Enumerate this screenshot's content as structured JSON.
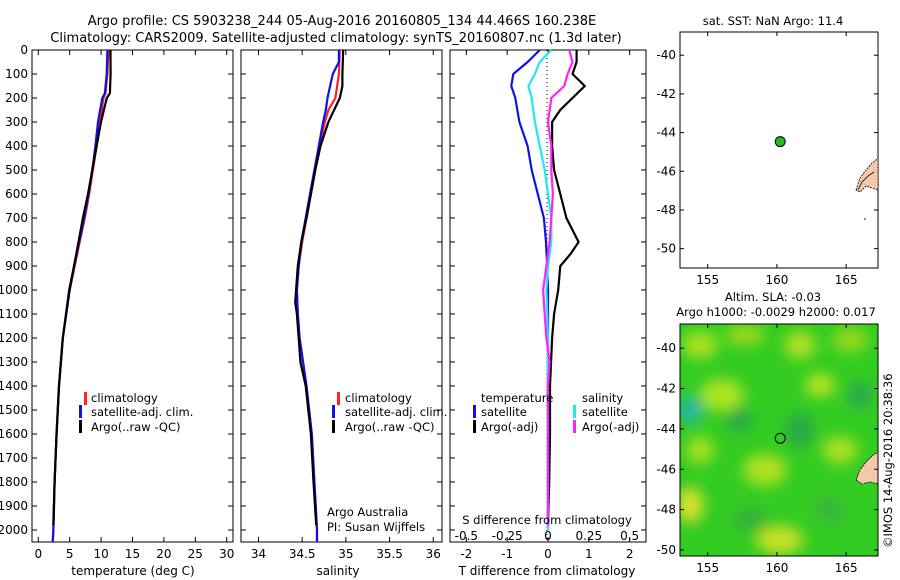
{
  "header": {
    "line1": "Argo profile: CS 5903238_244 05-Aug-2016 20160805_134 44.466S 160.238E",
    "line2": "Climatology: CARS2009. Satellite-adjusted climatology: synTS_20160807.nc (1.3d later)"
  },
  "colors": {
    "climatology": "#ff2020",
    "satellite": "#1010ee",
    "argo": "#000000",
    "sal_satellite": "#20e8f0",
    "sal_argo": "#ff20ff",
    "marker": "#22bb22",
    "sla_field": "#33cc22"
  },
  "legends": {
    "temp": [
      "climatology",
      "satellite-adj. clim.",
      "Argo(..raw -QC)"
    ],
    "sal": [
      "climatology",
      "satellite-adj. clim.",
      "Argo(..raw -QC)"
    ],
    "diff_temp_head": "temperature",
    "diff_sal_head": "salinity",
    "diff_temp": [
      "satellite",
      "Argo(-adj)"
    ],
    "diff_sal": [
      "satellite",
      "Argo(-adj)"
    ]
  },
  "annotations": {
    "institution": "Argo Australia",
    "pi": "PI: Susan Wijffels",
    "s_axis_title": "S difference from climatology",
    "sst_title": "sat. SST: NaN Argo: 11.4",
    "sla_title1": "Altim. SLA: -0.03",
    "sla_title2": "Argo h1000: -0.0029 h2000: 0.017",
    "credit": "©IMOS 14-Aug-2016 20:38:36"
  },
  "chart_data": [
    {
      "type": "line",
      "panel": "temperature",
      "xlabel": "temperature (deg C)",
      "xlim": [
        -1,
        31
      ],
      "xticks": [
        0,
        5,
        10,
        15,
        20,
        25,
        30
      ],
      "ylim": [
        2050,
        0
      ],
      "yticks": [
        0,
        100,
        200,
        300,
        400,
        500,
        600,
        700,
        800,
        900,
        1000,
        1100,
        1200,
        1300,
        1400,
        1500,
        1600,
        1700,
        1800,
        1900,
        2000
      ],
      "series": [
        {
          "name": "climatology",
          "color_key": "climatology",
          "depth": [
            0,
            100,
            180,
            200,
            300,
            400,
            500,
            600,
            700,
            800,
            900,
            1000,
            1200,
            1400,
            1600,
            1800,
            2000,
            2050
          ],
          "values": [
            11.2,
            11.0,
            10.7,
            10.4,
            9.8,
            9.3,
            8.7,
            8.1,
            7.4,
            6.6,
            5.8,
            5.0,
            3.9,
            3.3,
            2.9,
            2.6,
            2.4,
            2.3
          ]
        },
        {
          "name": "satellite-adj. clim.",
          "color_key": "satellite",
          "depth": [
            0,
            100,
            180,
            200,
            300,
            400,
            500,
            600,
            700,
            800,
            900,
            1000,
            1200,
            1400,
            1600,
            1800,
            2000,
            2050
          ],
          "values": [
            11.0,
            10.9,
            10.6,
            10.2,
            9.5,
            9.1,
            8.6,
            8.0,
            7.3,
            6.5,
            5.7,
            4.9,
            3.9,
            3.3,
            2.9,
            2.6,
            2.4,
            2.3
          ]
        },
        {
          "name": "Argo(..raw -QC)",
          "color_key": "argo",
          "depth": [
            0,
            100,
            180,
            200,
            300,
            400,
            500,
            600,
            700,
            800,
            900,
            1000,
            1200,
            1400,
            1600,
            1800,
            1980
          ],
          "values": [
            11.5,
            11.5,
            11.4,
            10.9,
            10.0,
            9.3,
            8.6,
            7.9,
            7.1,
            6.4,
            5.7,
            5.0,
            3.9,
            3.3,
            2.9,
            2.6,
            2.4
          ]
        }
      ]
    },
    {
      "type": "line",
      "panel": "salinity",
      "xlabel": "salinity",
      "xlim": [
        33.8,
        36.1
      ],
      "xticks": [
        34,
        34.5,
        35,
        35.5,
        36
      ],
      "ylim": [
        2050,
        0
      ],
      "series": [
        {
          "name": "climatology",
          "color_key": "climatology",
          "depth": [
            0,
            100,
            200,
            250,
            300,
            400,
            500,
            600,
            700,
            800,
            900,
            1000,
            1100,
            1200,
            1400,
            1600,
            1800,
            2000,
            2050
          ],
          "values": [
            34.93,
            34.92,
            34.88,
            34.8,
            34.76,
            34.7,
            34.65,
            34.6,
            34.55,
            34.5,
            34.46,
            34.44,
            34.45,
            34.47,
            34.55,
            34.61,
            34.64,
            34.67,
            34.67
          ]
        },
        {
          "name": "satellite-adj. clim.",
          "color_key": "satellite",
          "depth": [
            0,
            50,
            100,
            150,
            200,
            250,
            300,
            400,
            500,
            600,
            700,
            800,
            900,
            1000,
            1100,
            1200,
            1400,
            1600,
            1800,
            2000,
            2050
          ],
          "values": [
            34.92,
            34.92,
            34.85,
            34.82,
            34.79,
            34.77,
            34.74,
            34.69,
            34.64,
            34.59,
            34.54,
            34.49,
            34.46,
            34.44,
            34.45,
            34.47,
            34.55,
            34.61,
            34.64,
            34.67,
            34.67
          ]
        },
        {
          "name": "Argo(..raw -QC)",
          "color_key": "argo",
          "depth": [
            0,
            100,
            150,
            200,
            300,
            400,
            500,
            600,
            700,
            800,
            900,
            1000,
            1050,
            1100,
            1200,
            1300,
            1400,
            1600,
            1800,
            1980
          ],
          "values": [
            34.97,
            34.96,
            34.96,
            34.93,
            34.8,
            34.71,
            34.65,
            34.6,
            34.55,
            34.49,
            34.45,
            34.43,
            34.42,
            34.44,
            34.46,
            34.48,
            34.54,
            34.6,
            34.63,
            34.66
          ]
        }
      ]
    },
    {
      "type": "line",
      "panel": "differences",
      "xlabel": "T difference from climatology",
      "xlim": [
        -2.4,
        2.4
      ],
      "xticks": [
        -2,
        -1,
        0,
        1,
        2
      ],
      "s_xticks": [
        -0.5,
        -0.25,
        0,
        0.25,
        0.5
      ],
      "ylim": [
        2050,
        0
      ],
      "series": [
        {
          "name": "temperature satellite",
          "color_key": "satellite",
          "depth": [
            0,
            50,
            100,
            150,
            200,
            300,
            400,
            500,
            600,
            700,
            800,
            900,
            1000,
            1200,
            1400,
            1600,
            1800,
            2000
          ],
          "values": [
            -0.2,
            -0.5,
            -0.85,
            -0.9,
            -0.8,
            -0.7,
            -0.5,
            -0.4,
            -0.25,
            -0.1,
            -0.05,
            -0.02,
            0,
            0,
            0,
            0,
            0,
            0
          ]
        },
        {
          "name": "temperature Argo(-adj)",
          "color_key": "argo",
          "depth": [
            0,
            50,
            100,
            150,
            200,
            250,
            300,
            400,
            500,
            600,
            700,
            750,
            800,
            850,
            900,
            1000,
            1100,
            1200,
            1400,
            1600,
            1800,
            1980
          ],
          "values": [
            0.7,
            0.7,
            0.6,
            0.9,
            0.6,
            0.3,
            0.1,
            0.1,
            0.15,
            0.3,
            0.45,
            0.6,
            0.75,
            0.55,
            0.3,
            0.25,
            0.15,
            0.1,
            0.05,
            0.05,
            0.03,
            0
          ]
        },
        {
          "name": "salinity satellite",
          "color_key": "sal_satellite",
          "depth": [
            0,
            50,
            100,
            150,
            200,
            300,
            400,
            500,
            600,
            700,
            800,
            900,
            1000,
            1200,
            1400,
            1600,
            1800,
            2000
          ],
          "values": [
            0.02,
            -0.05,
            -0.08,
            -0.12,
            -0.1,
            -0.08,
            -0.05,
            -0.02,
            0,
            0.02,
            0.02,
            0,
            -0.01,
            0,
            0,
            0,
            0,
            0
          ]
        },
        {
          "name": "salinity Argo(-adj)",
          "color_key": "sal_argo",
          "depth": [
            0,
            50,
            100,
            150,
            200,
            300,
            400,
            500,
            600,
            700,
            800,
            900,
            1000,
            1100,
            1200,
            1300,
            1400,
            1600,
            1800,
            1980
          ],
          "values": [
            0.13,
            0.15,
            0.12,
            0.1,
            0.02,
            0,
            0.02,
            0.02,
            0.03,
            0.02,
            0.01,
            -0.01,
            -0.03,
            -0.02,
            -0.01,
            0.01,
            0.0,
            0.0,
            0.0,
            0.0
          ]
        }
      ]
    },
    {
      "type": "scatter",
      "panel": "sst-map",
      "title": "sat. SST: NaN Argo: 11.4",
      "xlim": [
        153,
        167.3
      ],
      "ylim": [
        -51,
        -38.8
      ],
      "xticks": [
        155,
        160,
        165
      ],
      "yticks": [
        -40,
        -42,
        -44,
        -46,
        -48,
        -50
      ],
      "points": [
        {
          "lon": 160.238,
          "lat": -44.466
        }
      ]
    },
    {
      "type": "heatmap",
      "panel": "sla-map",
      "title": "Altim. SLA: -0.03",
      "subtitle": "Argo h1000: -0.0029 h2000: 0.017",
      "xlim": [
        153,
        167.3
      ],
      "ylim": [
        -50.3,
        -38.8
      ],
      "xticks": [
        155,
        160,
        165
      ],
      "yticks": [
        -40,
        -42,
        -44,
        -46,
        -48,
        -50
      ],
      "points": [
        {
          "lon": 160.238,
          "lat": -44.466
        }
      ]
    }
  ]
}
